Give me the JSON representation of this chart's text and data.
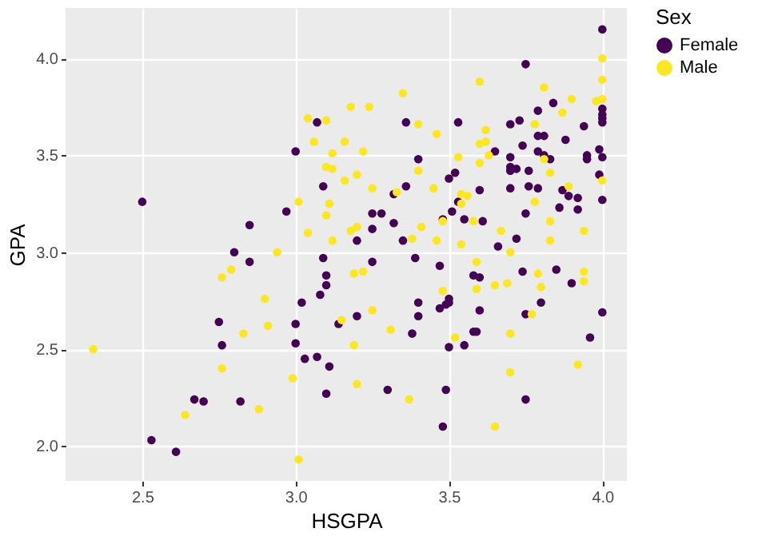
{
  "chart_data": {
    "type": "scatter",
    "xlabel": "HSGPA",
    "ylabel": "GPA",
    "legend_title": "Sex",
    "legend": "right",
    "grid": true,
    "marker": "circle",
    "xlim": [
      2.25,
      4.08
    ],
    "ylim": [
      1.82,
      4.26
    ],
    "xticks": [
      2.5,
      {
        "value": 3,
        "label": "3.0"
      },
      3.5,
      {
        "value": 4,
        "label": "4.0"
      }
    ],
    "yticks": [
      {
        "value": 2,
        "label": "2.0"
      },
      2.5,
      {
        "value": 3,
        "label": "3.0"
      },
      3.5,
      {
        "value": 4,
        "label": "4.0"
      }
    ],
    "series": [
      {
        "name": "Female",
        "color": "#440154",
        "x": [
          2.5,
          2.85,
          3.07,
          3.36,
          3.0,
          3.4,
          3.09,
          3.36,
          3.32,
          3.5,
          2.97,
          3.25,
          3.28,
          3.51,
          3.32,
          3.48,
          3.25,
          3.2,
          3.35,
          4.0,
          3.75,
          3.84,
          4.0,
          4.0,
          4.0,
          4.0,
          3.79,
          3.53,
          3.7,
          3.73,
          3.94,
          3.79,
          3.81,
          3.88,
          3.74,
          3.65,
          3.7,
          3.79,
          3.81,
          3.83,
          3.95,
          3.95,
          3.99,
          4.0,
          3.7,
          3.7,
          3.72,
          3.76,
          3.99,
          3.52,
          3.7,
          3.76,
          3.79,
          3.6,
          3.87,
          3.89,
          3.92,
          4.0,
          3.53,
          3.75,
          3.86,
          3.92,
          3.55,
          3.61,
          3.72,
          3.66,
          2.8,
          2.85,
          2.75,
          2.76,
          2.67,
          2.7,
          2.82,
          2.53,
          2.61,
          3.09,
          3.25,
          3.39,
          3.47,
          3.1,
          3.1,
          3.08,
          3.02,
          3.5,
          3.5,
          3.4,
          3.47,
          3.49,
          3.2,
          3.4,
          3.14,
          3.0,
          3.38,
          3.0,
          3.5,
          3.03,
          3.07,
          3.11,
          3.1,
          3.3,
          3.49,
          3.48,
          3.58,
          3.6,
          3.74,
          3.85,
          3.9,
          3.8,
          3.6,
          3.75,
          4.0,
          3.58,
          3.59,
          3.96,
          3.55,
          3.75
        ],
        "values": [
          3.26,
          3.14,
          3.67,
          3.67,
          3.52,
          3.48,
          3.34,
          3.34,
          3.3,
          3.38,
          3.21,
          3.2,
          3.2,
          3.21,
          3.15,
          3.17,
          3.12,
          3.06,
          3.06,
          4.15,
          3.97,
          3.77,
          3.74,
          3.71,
          3.69,
          3.67,
          3.73,
          3.67,
          3.66,
          3.68,
          3.65,
          3.6,
          3.6,
          3.58,
          3.55,
          3.52,
          3.49,
          3.52,
          3.5,
          3.48,
          3.5,
          3.48,
          3.53,
          3.49,
          3.44,
          3.42,
          3.43,
          3.42,
          3.4,
          3.41,
          3.33,
          3.34,
          3.33,
          3.32,
          3.32,
          3.29,
          3.28,
          3.27,
          3.26,
          3.2,
          3.23,
          3.22,
          3.17,
          3.16,
          3.07,
          3.03,
          3.0,
          2.95,
          2.64,
          2.52,
          2.24,
          2.23,
          2.23,
          2.03,
          1.97,
          2.97,
          2.95,
          2.97,
          2.93,
          2.88,
          2.83,
          2.78,
          2.74,
          2.76,
          2.74,
          2.74,
          2.71,
          2.73,
          2.67,
          2.67,
          2.63,
          2.63,
          2.58,
          2.53,
          2.51,
          2.45,
          2.46,
          2.41,
          2.27,
          2.29,
          2.29,
          2.1,
          2.88,
          2.87,
          2.9,
          2.91,
          2.84,
          2.74,
          2.7,
          2.68,
          2.69,
          2.59,
          2.59,
          2.56,
          2.52,
          2.24
        ]
      },
      {
        "name": "Male",
        "color": "#fde725",
        "x": [
          3.35,
          3.04,
          3.1,
          3.18,
          3.24,
          3.4,
          3.46,
          3.06,
          3.16,
          3.12,
          3.22,
          3.1,
          3.12,
          3.4,
          3.2,
          3.16,
          3.25,
          3.33,
          3.45,
          3.01,
          3.11,
          3.1,
          3.48,
          3.04,
          3.18,
          3.2,
          3.41,
          3.12,
          3.38,
          3.46,
          4.0,
          4.0,
          3.6,
          3.81,
          3.9,
          3.98,
          4.0,
          3.87,
          3.78,
          3.62,
          3.6,
          3.62,
          3.53,
          3.6,
          3.63,
          3.81,
          3.83,
          4.0,
          3.89,
          3.54,
          3.56,
          3.54,
          3.78,
          3.58,
          3.83,
          3.67,
          3.94,
          3.83,
          3.54,
          2.79,
          2.76,
          2.83,
          2.34,
          2.76,
          2.88,
          2.64,
          2.94,
          3.19,
          3.22,
          2.9,
          3.48,
          3.25,
          3.15,
          2.91,
          3.31,
          3.19,
          2.99,
          3.2,
          3.37,
          3.01,
          3.7,
          3.59,
          3.59,
          3.65,
          3.69,
          3.79,
          3.94,
          3.94,
          3.8,
          3.77,
          3.52,
          3.7,
          3.7,
          3.92,
          3.65
        ],
        "values": [
          3.82,
          3.69,
          3.68,
          3.75,
          3.75,
          3.66,
          3.61,
          3.57,
          3.57,
          3.51,
          3.52,
          3.44,
          3.43,
          3.42,
          3.4,
          3.37,
          3.33,
          3.31,
          3.33,
          3.26,
          3.25,
          3.19,
          3.16,
          3.1,
          3.11,
          3.13,
          3.13,
          3.06,
          3.07,
          3.06,
          4.0,
          3.89,
          3.88,
          3.85,
          3.79,
          3.78,
          3.79,
          3.72,
          3.66,
          3.63,
          3.56,
          3.57,
          3.49,
          3.46,
          3.5,
          3.48,
          3.41,
          3.37,
          3.34,
          3.3,
          3.29,
          3.25,
          3.26,
          3.16,
          3.16,
          3.11,
          3.11,
          3.06,
          3.04,
          2.91,
          2.87,
          2.58,
          2.5,
          2.4,
          2.19,
          2.16,
          3.0,
          2.89,
          2.9,
          2.76,
          2.8,
          2.7,
          2.65,
          2.62,
          2.6,
          2.52,
          2.35,
          2.32,
          2.24,
          1.93,
          3.0,
          2.95,
          2.81,
          2.83,
          2.84,
          2.89,
          2.9,
          2.85,
          2.82,
          2.68,
          2.56,
          2.58,
          2.38,
          2.42,
          2.1
        ]
      }
    ]
  }
}
